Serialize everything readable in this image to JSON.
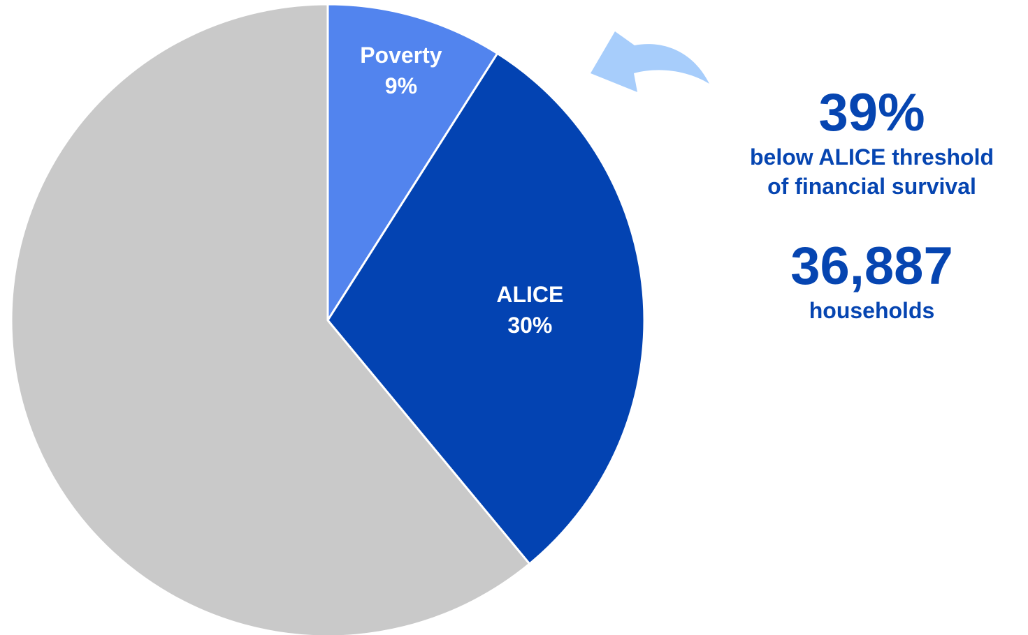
{
  "chart_data": {
    "type": "pie",
    "slices": [
      {
        "label": "Poverty",
        "value": 9,
        "value_label": "9%",
        "color": "#5284ee"
      },
      {
        "label": "ALICE",
        "value": 30,
        "value_label": "30%",
        "color": "#0343b2"
      },
      {
        "label": "",
        "value": 61,
        "value_label": "",
        "color": "#c9c9c9"
      }
    ],
    "start_angle_deg": 0,
    "direction": "clockwise",
    "slice_border_color": "#ffffff"
  },
  "annotation": {
    "arrow_color": "#a7cdfb",
    "percent": "39%",
    "percent_caption_line1": "below ALICE threshold",
    "percent_caption_line2": "of financial survival",
    "households": "36,887",
    "households_caption": "households",
    "text_color": "#0645b1"
  }
}
